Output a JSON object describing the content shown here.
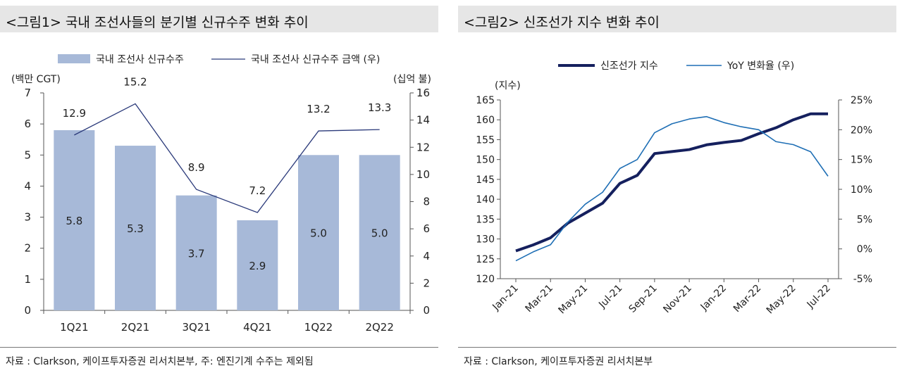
{
  "figure1": {
    "title": "<그림1> 국내 조선사들의 분기별 신규수주 변화 추이",
    "source": "자료 : Clarkson, 케이프투자증권 리서치본부, 주: 엔진기계 수주는 제외됨",
    "colors": {
      "bar": "#a7b9d8",
      "line": "#2b3a7a"
    },
    "chart_data": {
      "type": "bar",
      "categories": [
        "1Q21",
        "2Q21",
        "3Q21",
        "4Q21",
        "1Q22",
        "2Q22"
      ],
      "series": [
        {
          "name": "국내 조선사 신규수주",
          "type": "bar",
          "axis": "left",
          "values": [
            5.8,
            5.3,
            3.7,
            2.9,
            5.0,
            5.0
          ],
          "labels": [
            "5.8",
            "5.3",
            "3.7",
            "2.9",
            "5.0",
            "5.0"
          ]
        },
        {
          "name": "국내 조선사 신규수주 금액 (우)",
          "type": "line",
          "axis": "right",
          "values": [
            12.9,
            15.2,
            8.9,
            7.2,
            13.2,
            13.3
          ],
          "labels": [
            "12.9",
            "15.2",
            "8.9",
            "7.2",
            "13.2",
            "13.3"
          ]
        }
      ],
      "ylabel_left": "(백만 CGT)",
      "ylabel_right": "(십억 불)",
      "ylim_left": [
        0,
        7
      ],
      "ylim_right": [
        0,
        16
      ],
      "yticks_left": [
        "0",
        "1",
        "2",
        "3",
        "4",
        "5",
        "6",
        "7"
      ],
      "yticks_right": [
        "0",
        "2",
        "4",
        "6",
        "8",
        "10",
        "12",
        "14",
        "16"
      ],
      "legend": "top",
      "grid": false
    }
  },
  "figure2": {
    "title": "<그림2> 신조선가 지수 변화 추이",
    "source": "자료 : Clarkson, 케이프투자증권 리서치본부",
    "colors": {
      "index": "#15205e",
      "yoy": "#1f6fb5"
    },
    "chart_data": {
      "type": "line",
      "x": [
        "Jan-21",
        "Feb-21",
        "Mar-21",
        "Apr-21",
        "May-21",
        "Jun-21",
        "Jul-21",
        "Aug-21",
        "Sep-21",
        "Oct-21",
        "Nov-21",
        "Dec-21",
        "Jan-22",
        "Feb-22",
        "Mar-22",
        "Apr-22",
        "May-22",
        "Jun-22",
        "Jul-22"
      ],
      "xtick_labels": [
        "Jan-21",
        "Mar-21",
        "May-21",
        "Jul-21",
        "Sep-21",
        "Nov-21",
        "Jan-22",
        "Mar-22",
        "May-22",
        "Jul-22"
      ],
      "series": [
        {
          "name": "신조선가 지수",
          "axis": "left",
          "values": [
            127.0,
            128.5,
            130.3,
            134.0,
            136.5,
            139.0,
            144.0,
            146.0,
            151.5,
            152.0,
            152.5,
            153.7,
            154.3,
            154.8,
            156.5,
            158.0,
            160.0,
            161.5,
            161.5
          ]
        },
        {
          "name": "YoY 변화율 (우)",
          "axis": "right",
          "values": [
            -2.0,
            -0.5,
            0.7,
            4.5,
            7.5,
            9.5,
            13.5,
            15.0,
            19.5,
            21.0,
            21.8,
            22.2,
            21.2,
            20.5,
            20.0,
            18.0,
            17.5,
            16.3,
            12.2
          ]
        }
      ],
      "ylabel_left": "(지수)",
      "ylim_left": [
        120,
        165
      ],
      "ylim_right": [
        -5,
        25
      ],
      "yticks_left": [
        "120",
        "125",
        "130",
        "135",
        "140",
        "145",
        "150",
        "155",
        "160",
        "165"
      ],
      "yticks_right": [
        "-5%",
        "0%",
        "5%",
        "10%",
        "15%",
        "20%",
        "25%"
      ],
      "legend": "top",
      "grid": false
    }
  }
}
